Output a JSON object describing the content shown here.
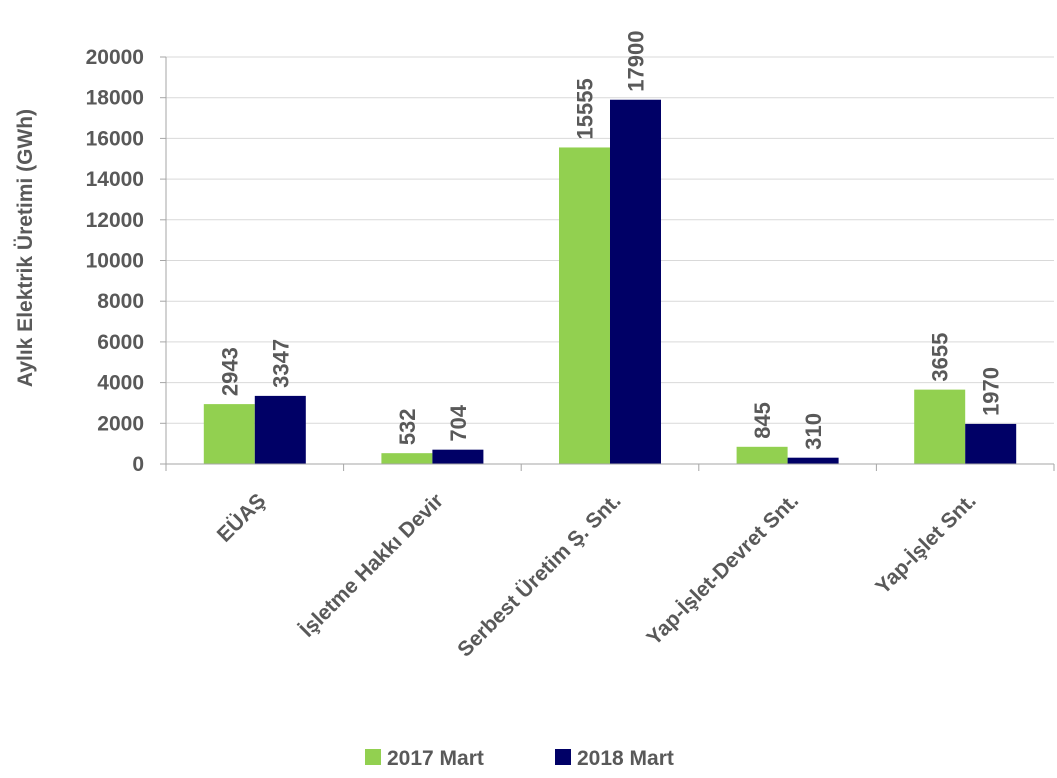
{
  "chart_data": {
    "type": "bar",
    "title": "",
    "xlabel": "",
    "ylabel": "Aylık Elektrik Üretimi (GWh)",
    "categories": [
      "EÜAŞ",
      "İşletme Hakkı Devir",
      "Serbest Üretim Ş. Snt.",
      "Yap-İşlet-Devret Snt.",
      "Yap-İşlet Snt."
    ],
    "series": [
      {
        "name": "2017 Mart",
        "color": "#92d050",
        "values": [
          2943,
          532,
          15555,
          845,
          3655
        ]
      },
      {
        "name": "2018 Mart",
        "color": "#000066",
        "values": [
          3347,
          704,
          17900,
          310,
          1970
        ]
      }
    ],
    "ylim": [
      0,
      20000
    ],
    "yticks": [
      0,
      2000,
      4000,
      6000,
      8000,
      10000,
      12000,
      14000,
      16000,
      18000,
      20000
    ],
    "grid": true,
    "legend_position": "bottom"
  }
}
